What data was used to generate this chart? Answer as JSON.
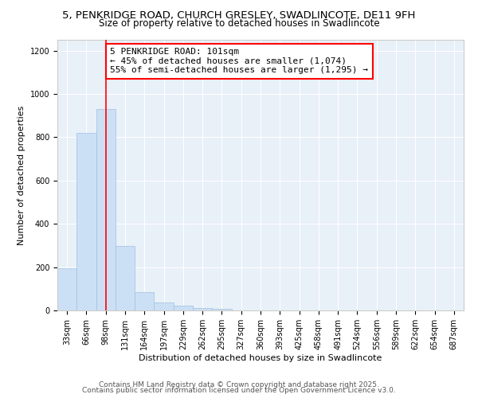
{
  "title_line1": "5, PENKRIDGE ROAD, CHURCH GRESLEY, SWADLINCOTE, DE11 9FH",
  "title_line2": "Size of property relative to detached houses in Swadlincote",
  "xlabel": "Distribution of detached houses by size in Swadlincote",
  "ylabel": "Number of detached properties",
  "bar_color": "#cce0f5",
  "bar_edge_color": "#a0c0e0",
  "categories": [
    "33sqm",
    "66sqm",
    "98sqm",
    "131sqm",
    "164sqm",
    "197sqm",
    "229sqm",
    "262sqm",
    "295sqm",
    "327sqm",
    "360sqm",
    "393sqm",
    "425sqm",
    "458sqm",
    "491sqm",
    "524sqm",
    "556sqm",
    "589sqm",
    "622sqm",
    "654sqm",
    "687sqm"
  ],
  "values": [
    195,
    820,
    930,
    298,
    85,
    38,
    22,
    12,
    8,
    0,
    0,
    0,
    0,
    0,
    0,
    0,
    0,
    0,
    0,
    0,
    0
  ],
  "red_line_x": 2.0,
  "annotation_text_line1": "5 PENKRIDGE ROAD: 101sqm",
  "annotation_text_line2": "← 45% of detached houses are smaller (1,074)",
  "annotation_text_line3": "55% of semi-detached houses are larger (1,295) →",
  "ylim": [
    0,
    1250
  ],
  "yticks": [
    0,
    200,
    400,
    600,
    800,
    1000,
    1200
  ],
  "footer_line1": "Contains HM Land Registry data © Crown copyright and database right 2025.",
  "footer_line2": "Contains public sector information licensed under the Open Government Licence v3.0.",
  "background_color": "#ffffff",
  "plot_bg_color": "#e8f0f8",
  "grid_color": "#ffffff",
  "title_fontsize": 9.5,
  "subtitle_fontsize": 8.5,
  "axis_label_fontsize": 8,
  "tick_fontsize": 7,
  "annotation_fontsize": 8,
  "footer_fontsize": 6.5
}
